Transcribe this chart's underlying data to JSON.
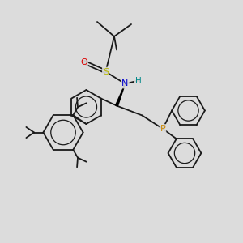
{
  "background_color": "#dcdcdc",
  "bond_color": "#1a1a1a",
  "bond_lw": 1.3,
  "atom_colors": {
    "S": "#b8b800",
    "O": "#dd0000",
    "N": "#0000cc",
    "P": "#cc8800",
    "H": "#008888"
  },
  "layout": {
    "xlim": [
      0,
      10
    ],
    "ylim": [
      0,
      10
    ]
  }
}
